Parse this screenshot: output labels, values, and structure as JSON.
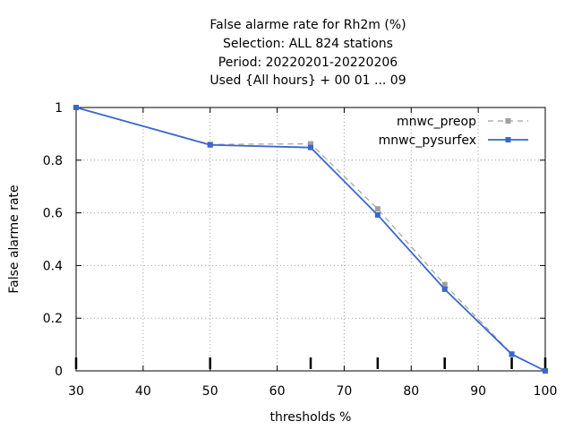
{
  "chart_data": {
    "type": "line",
    "title_lines": [
      "False alarme rate  for Rh2m (%)",
      "Selection: ALL    824 stations",
      "Period: 20220201-20220206",
      "Used {All hours} + 00 01 ... 09"
    ],
    "xlabel": "thresholds %",
    "ylabel": "False alarme rate",
    "xlim": [
      30,
      100
    ],
    "ylim": [
      0,
      1
    ],
    "xticks": [
      30,
      40,
      50,
      60,
      70,
      80,
      90,
      100
    ],
    "yticks": [
      0,
      0.2,
      0.4,
      0.6,
      0.8,
      1
    ],
    "grid": true,
    "legend_position": "top-right",
    "threshold_marks": [
      30,
      50,
      65,
      75,
      85,
      95,
      100
    ],
    "series": [
      {
        "name": "mnwc_preop",
        "color": "#a0a0a0",
        "dashed": true,
        "x": [
          30,
          50,
          65,
          75,
          85,
          95,
          100
        ],
        "y": [
          1.0,
          0.86,
          0.862,
          0.615,
          0.328,
          0.065,
          0.0
        ]
      },
      {
        "name": "mnwc_pysurfex",
        "color": "#3a67cc",
        "dashed": false,
        "x": [
          30,
          50,
          65,
          75,
          85,
          95,
          100
        ],
        "y": [
          1.0,
          0.858,
          0.848,
          0.592,
          0.31,
          0.063,
          0.0
        ]
      }
    ]
  }
}
